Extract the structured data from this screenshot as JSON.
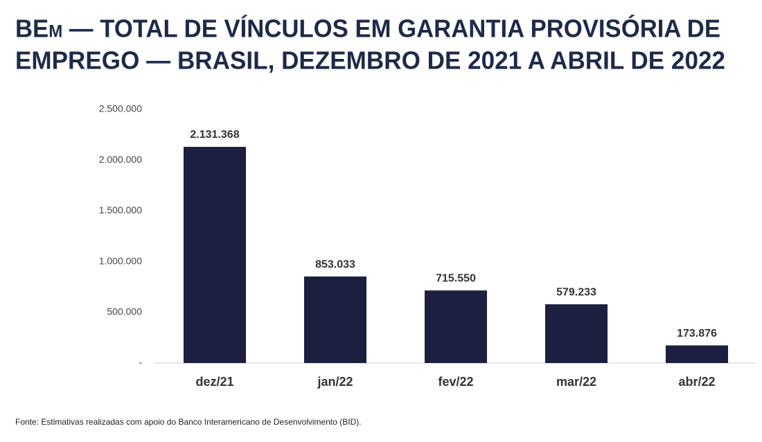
{
  "chart_data": {
    "type": "bar",
    "title": [
      "BEm — TOTAL DE VÍNCULOS EM GARANTIA PROVISÓRIA DE",
      "EMPREGO — BRASIL, DEZEMBRO DE 2021 A ABRIL DE 2022"
    ],
    "categories": [
      "dez/21",
      "jan/22",
      "fev/22",
      "mar/22",
      "abr/22"
    ],
    "values": [
      2131368,
      853033,
      715550,
      579233,
      173876
    ],
    "value_labels": [
      "2.131.368",
      "853.033",
      "715.550",
      "579.233",
      "173.876"
    ],
    "color": "#1c1f3f",
    "ylim": [
      0,
      2500000
    ],
    "yticks": [
      {
        "value": 0,
        "label": "-"
      },
      {
        "value": 500000,
        "label": "500.000"
      },
      {
        "value": 1000000,
        "label": "1.000.000"
      },
      {
        "value": 1500000,
        "label": "1.500.000"
      },
      {
        "value": 2000000,
        "label": "2.000.000"
      },
      {
        "value": 2500000,
        "label": "2.500.000"
      }
    ],
    "grid": false,
    "note": "Fonte: Estimativas realizadas com apoio do Banco Interamericano de Desenvolvimento (BID)."
  }
}
